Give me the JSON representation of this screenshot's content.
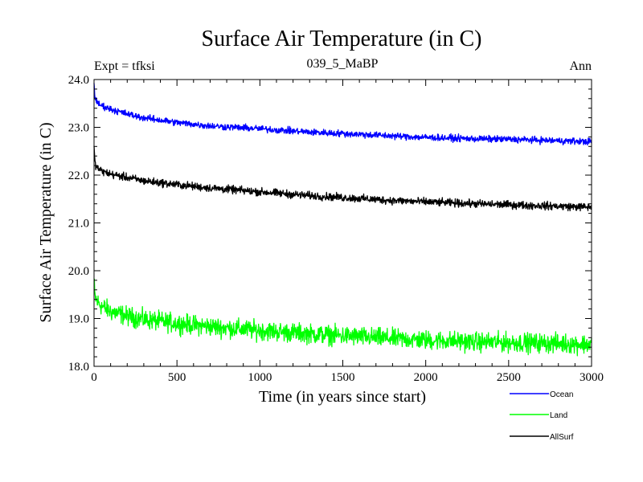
{
  "chart_data": {
    "type": "line",
    "title": "Surface Air Temperature (in C)",
    "subtitle_left": "Expt = tfksi",
    "subtitle_center": "039_5_MaBP",
    "subtitle_right": "Ann",
    "xlabel": "Time (in years since start)",
    "ylabel": "Surface Air Temperature (in C)",
    "xlim": [
      0,
      3000
    ],
    "ylim": [
      18.0,
      24.0
    ],
    "x_ticks": [
      0,
      500,
      1000,
      1500,
      2000,
      2500,
      3000
    ],
    "x_tick_labels": [
      "0",
      "500",
      "1000",
      "1500",
      "2000",
      "2500",
      "3000"
    ],
    "y_ticks": [
      18.0,
      19.0,
      20.0,
      21.0,
      22.0,
      23.0,
      24.0
    ],
    "y_tick_labels": [
      "18.0",
      "19.0",
      "20.0",
      "21.0",
      "22.0",
      "23.0",
      "24.0"
    ],
    "grid": false,
    "legend_position": "bottom-right-outside",
    "series": [
      {
        "name": "Ocean",
        "color": "#0000ff",
        "noise": 0.06,
        "x": [
          0,
          5,
          20,
          50,
          100,
          200,
          300,
          500,
          700,
          1000,
          1300,
          1500,
          1800,
          2000,
          2300,
          2500,
          2800,
          3000
        ],
        "y": [
          23.95,
          23.65,
          23.5,
          23.45,
          23.38,
          23.28,
          23.2,
          23.1,
          23.03,
          22.97,
          22.9,
          22.87,
          22.82,
          22.79,
          22.76,
          22.75,
          22.72,
          22.7
        ]
      },
      {
        "name": "Land",
        "color": "#00ff00",
        "noise": 0.17,
        "x": [
          0,
          5,
          20,
          50,
          100,
          200,
          300,
          500,
          700,
          1000,
          1300,
          1500,
          1800,
          2000,
          2300,
          2500,
          2800,
          3000
        ],
        "y": [
          19.8,
          19.45,
          19.35,
          19.25,
          19.15,
          19.05,
          18.98,
          18.9,
          18.83,
          18.75,
          18.68,
          18.64,
          18.58,
          18.55,
          18.51,
          18.5,
          18.48,
          18.46
        ]
      },
      {
        "name": "AllSurf",
        "color": "#000000",
        "noise": 0.07,
        "x": [
          0,
          5,
          20,
          50,
          100,
          200,
          300,
          500,
          700,
          1000,
          1300,
          1500,
          1800,
          2000,
          2300,
          2500,
          2800,
          3000
        ],
        "y": [
          22.65,
          22.25,
          22.15,
          22.08,
          22.02,
          21.95,
          21.88,
          21.8,
          21.73,
          21.65,
          21.57,
          21.53,
          21.47,
          21.44,
          21.4,
          21.38,
          21.35,
          21.33
        ]
      }
    ]
  }
}
